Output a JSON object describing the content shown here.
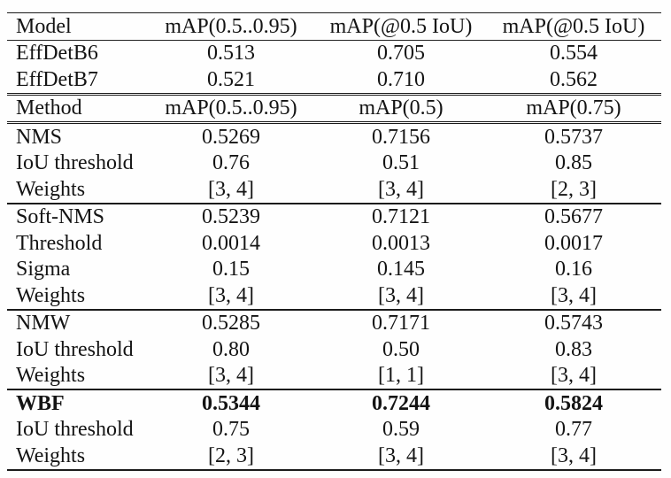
{
  "page": {
    "background": "#fefefe",
    "text_color": "#141414",
    "rule_color": "#1b1b1b"
  },
  "table": {
    "columns": [
      "label",
      "col2",
      "col3",
      "col4"
    ],
    "rows": [
      {
        "cells": [
          "Model",
          "mAP(0.5..0.95)",
          "mAP(@0.5 IoU)",
          "mAP(@0.5 IoU)"
        ],
        "header": true,
        "rule": "thin",
        "bold": false
      },
      {
        "cells": [
          "EffDetB6",
          "0.513",
          "0.705",
          "0.554"
        ],
        "header": false,
        "rule": "none",
        "bold": false
      },
      {
        "cells": [
          "EffDetB7",
          "0.521",
          "0.710",
          "0.562"
        ],
        "header": false,
        "rule": "thick",
        "bold": false
      },
      {
        "cells": [
          "Method",
          "mAP(0.5..0.95)",
          "mAP(0.5)",
          "mAP(0.75)"
        ],
        "header": true,
        "rule": "thick",
        "bold": false
      },
      {
        "cells": [
          "NMS",
          "0.5269",
          "0.7156",
          "0.5737"
        ],
        "header": false,
        "rule": "none",
        "bold": false
      },
      {
        "cells": [
          "IoU threshold",
          "0.76",
          "0.51",
          "0.85"
        ],
        "header": false,
        "rule": "none",
        "bold": false
      },
      {
        "cells": [
          "Weights",
          "[3, 4]",
          "[3, 4]",
          "[2, 3]"
        ],
        "header": false,
        "rule": "medium",
        "bold": false
      },
      {
        "cells": [
          "Soft-NMS",
          "0.5239",
          "0.7121",
          "0.5677"
        ],
        "header": false,
        "rule": "none",
        "bold": false
      },
      {
        "cells": [
          "Threshold",
          "0.0014",
          "0.0013",
          "0.0017"
        ],
        "header": false,
        "rule": "none",
        "bold": false
      },
      {
        "cells": [
          "Sigma",
          "0.15",
          "0.145",
          "0.16"
        ],
        "header": false,
        "rule": "none",
        "bold": false
      },
      {
        "cells": [
          "Weights",
          "[3, 4]",
          "[3, 4]",
          "[3, 4]"
        ],
        "header": false,
        "rule": "medium",
        "bold": false
      },
      {
        "cells": [
          "NMW",
          "0.5285",
          "0.7171",
          "0.5743"
        ],
        "header": false,
        "rule": "none",
        "bold": false
      },
      {
        "cells": [
          "IoU threshold",
          "0.80",
          "0.50",
          "0.83"
        ],
        "header": false,
        "rule": "none",
        "bold": false
      },
      {
        "cells": [
          "Weights",
          "[3, 4]",
          "[1, 1]",
          "[3, 4]"
        ],
        "header": false,
        "rule": "medium",
        "bold": false
      },
      {
        "cells": [
          "WBF",
          "0.5344",
          "0.7244",
          "0.5824"
        ],
        "header": false,
        "rule": "none",
        "bold": true
      },
      {
        "cells": [
          "IoU threshold",
          "0.75",
          "0.59",
          "0.77"
        ],
        "header": false,
        "rule": "none",
        "bold": false
      },
      {
        "cells": [
          "Weights",
          "[2, 3]",
          "[3, 4]",
          "[3, 4]"
        ],
        "header": false,
        "rule": "none",
        "bold": false
      }
    ]
  }
}
